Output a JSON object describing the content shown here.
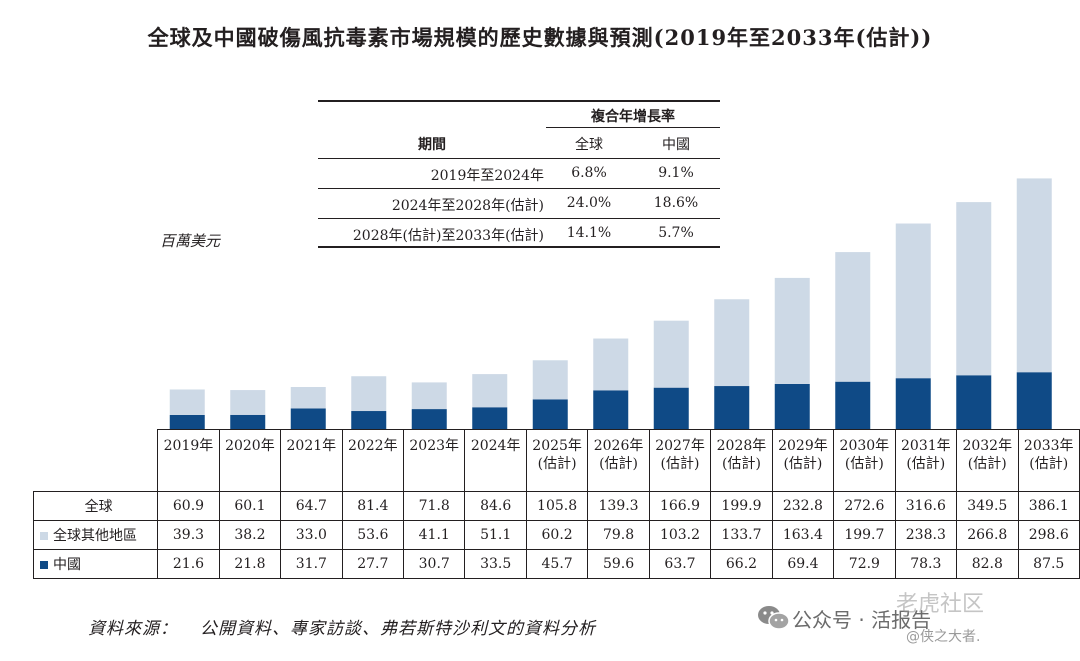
{
  "title": "全球及中國破傷風抗毒素市場規模的歷史數據與預測(2019年至2033年(估計))",
  "unit_label": "百萬美元",
  "cagr_table": {
    "header_group": "複合年增長率",
    "period_header": "期間",
    "col_global": "全球",
    "col_china": "中國",
    "rows": [
      {
        "period": "2019年至2024年",
        "global": "6.8%",
        "china": "9.1%"
      },
      {
        "period": "2024年至2028年(估計)",
        "global": "24.0%",
        "china": "18.6%"
      },
      {
        "period": "2028年(估計)至2033年(估計)",
        "global": "14.1%",
        "china": "5.7%"
      }
    ]
  },
  "chart_data": {
    "type": "bar",
    "stacked": true,
    "categories": [
      "2019年",
      "2020年",
      "2021年",
      "2022年",
      "2023年",
      "2024年",
      "2025年(估計)",
      "2026年(估計)",
      "2027年(估計)",
      "2028年(估計)",
      "2029年(估計)",
      "2030年(估計)",
      "2031年(估計)",
      "2032年(估計)",
      "2033年(估計)"
    ],
    "category_lines": [
      [
        "2019年"
      ],
      [
        "2020年"
      ],
      [
        "2021年"
      ],
      [
        "2022年"
      ],
      [
        "2023年"
      ],
      [
        "2024年"
      ],
      [
        "2025年",
        "(估計)"
      ],
      [
        "2026年",
        "(估計)"
      ],
      [
        "2027年",
        "(估計)"
      ],
      [
        "2028年",
        "(估計)"
      ],
      [
        "2029年",
        "(估計)"
      ],
      [
        "2030年",
        "(估計)"
      ],
      [
        "2031年",
        "(估計)"
      ],
      [
        "2032年",
        "(估計)"
      ],
      [
        "2033年",
        "(估計)"
      ]
    ],
    "series": [
      {
        "name": "中國",
        "color": "#0f4a86",
        "values": [
          21.6,
          21.8,
          31.7,
          27.7,
          30.7,
          33.5,
          45.7,
          59.6,
          63.7,
          66.2,
          69.4,
          72.9,
          78.3,
          82.8,
          87.5
        ]
      },
      {
        "name": "全球其他地區",
        "color": "#cdd9e6",
        "values": [
          39.3,
          38.2,
          33.0,
          53.6,
          41.1,
          51.1,
          60.2,
          79.8,
          103.2,
          133.7,
          163.4,
          199.7,
          238.3,
          266.8,
          298.6
        ]
      }
    ],
    "totals": {
      "name": "全球",
      "values": [
        60.9,
        60.1,
        64.7,
        81.4,
        71.8,
        84.6,
        105.8,
        139.3,
        166.9,
        199.9,
        232.8,
        272.6,
        316.6,
        349.5,
        386.1
      ]
    },
    "ylabel": "百萬美元",
    "ylim": [
      0,
      400
    ]
  },
  "table_rows": {
    "total_label": "全球",
    "other_label": "全球其他地區",
    "china_label": "中國"
  },
  "source": {
    "label": "資料來源：",
    "text": "公開資料、專家訪談、弗若斯特沙利文的資料分析"
  },
  "watermark": {
    "brand": "公众号 · 活报告",
    "site": "老虎社区",
    "author": "@侠之大者."
  }
}
